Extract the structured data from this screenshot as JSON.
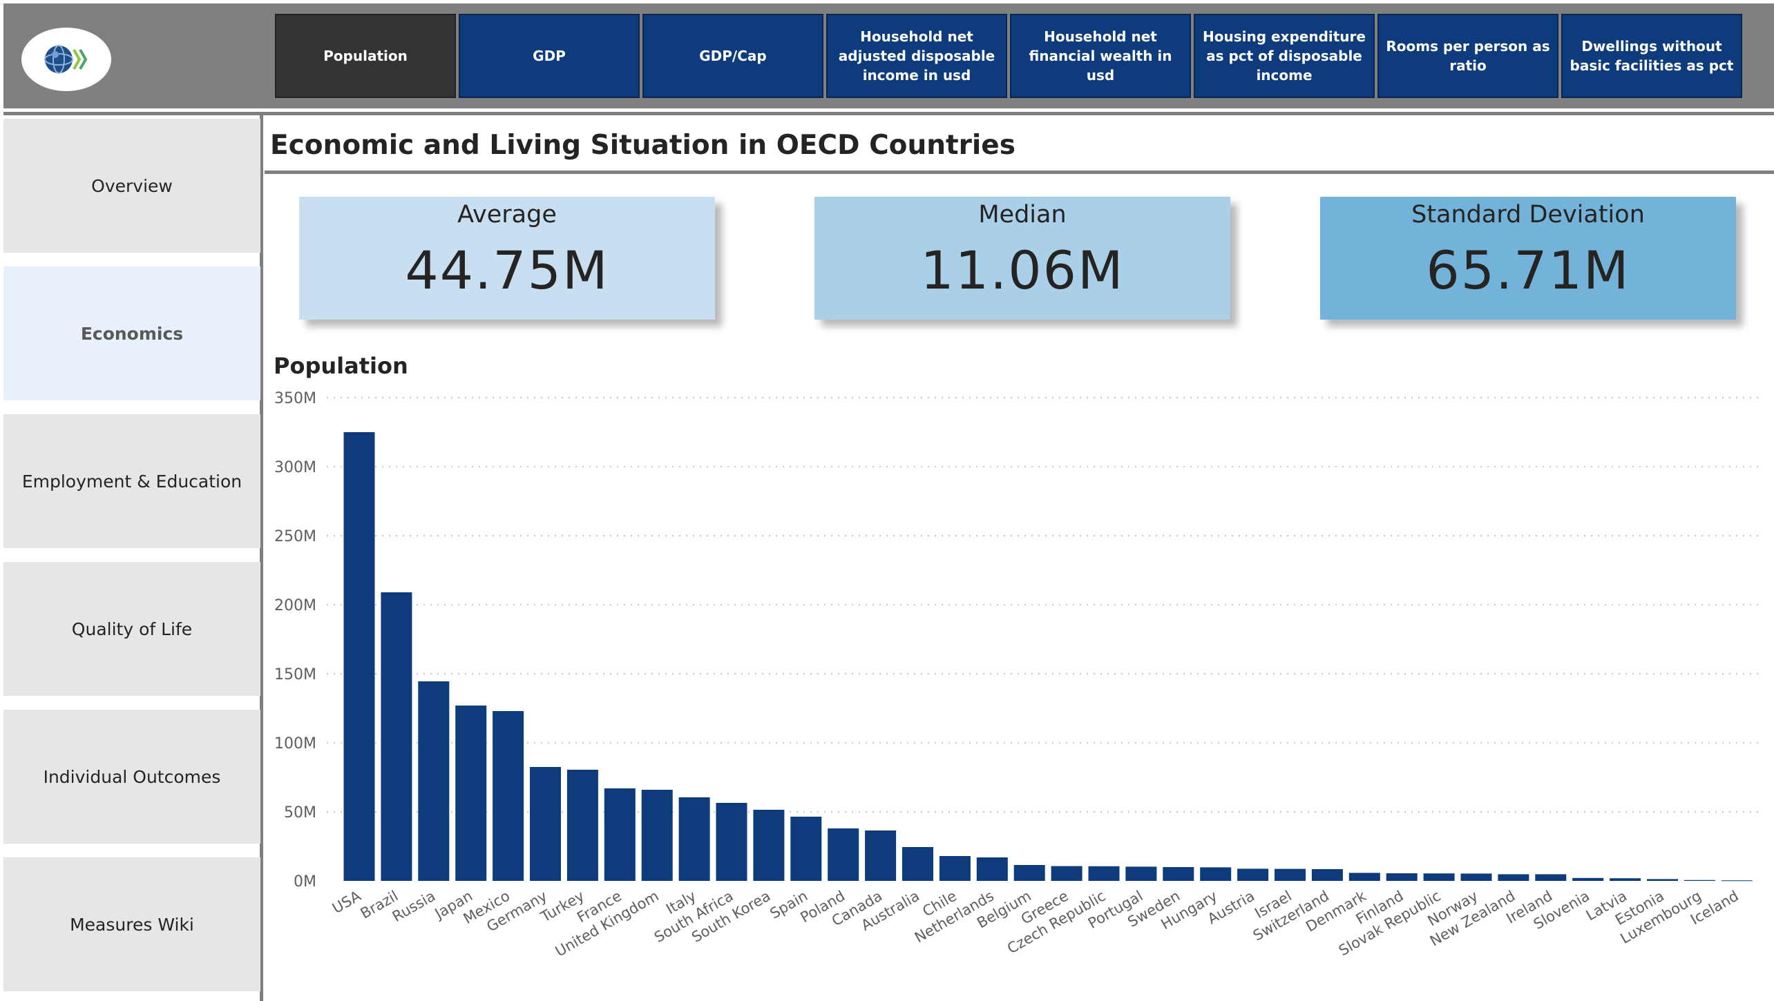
{
  "header": {
    "logo_icon": "oecd-globe-logo",
    "tabs": [
      {
        "label": "Population",
        "active": true
      },
      {
        "label": "GDP",
        "active": false
      },
      {
        "label": "GDP/Cap",
        "active": false
      },
      {
        "label": "Household net\nadjusted disposable\nincome in usd",
        "active": false
      },
      {
        "label": "Household net\nfinancial wealth in usd",
        "active": false
      },
      {
        "label": "Housing expenditure\nas pct of disposable\nincome",
        "active": false
      },
      {
        "label": "Rooms per person as\nratio",
        "active": false
      },
      {
        "label": "Dwellings without\nbasic facilities as pct",
        "active": false
      }
    ]
  },
  "sidebar": {
    "items": [
      {
        "label": "Overview",
        "active": false
      },
      {
        "label": "Economics",
        "active": true
      },
      {
        "label": "Employment & Education",
        "active": false
      },
      {
        "label": "Quality of Life",
        "active": false
      },
      {
        "label": "Individual Outcomes",
        "active": false
      },
      {
        "label": "Measures Wiki",
        "active": false
      }
    ]
  },
  "page": {
    "title": "Economic and Living Situation in OECD Countries"
  },
  "kpis": [
    {
      "label": "Average",
      "value": "44.75M",
      "color": "#c7dff0"
    },
    {
      "label": "Median",
      "value": "11.06M",
      "color": "#a9d0e8"
    },
    {
      "label": "Standard Deviation",
      "value": "65.71M",
      "color": "#74b3d9"
    }
  ],
  "colors": {
    "tab_bg": "#0d3b7b",
    "tab_active_bg": "#333333",
    "bar": "#0d3b7b",
    "sidebar_bg": "#e6e6e6",
    "sidebar_active_bg": "#e8f1fb"
  },
  "chart_data": {
    "type": "bar",
    "title": "Population",
    "xlabel": "",
    "ylabel": "",
    "ylim": [
      0,
      350
    ],
    "yticks": [
      0,
      50,
      100,
      150,
      200,
      250,
      300,
      350
    ],
    "ytick_labels": [
      "0M",
      "50M",
      "100M",
      "150M",
      "200M",
      "250M",
      "300M",
      "350M"
    ],
    "grid": true,
    "categories": [
      "USA",
      "Brazil",
      "Russia",
      "Japan",
      "Mexico",
      "Germany",
      "Turkey",
      "France",
      "United Kingdom",
      "Italy",
      "South Africa",
      "South Korea",
      "Spain",
      "Poland",
      "Canada",
      "Australia",
      "Chile",
      "Netherlands",
      "Belgium",
      "Greece",
      "Czech Republic",
      "Portugal",
      "Sweden",
      "Hungary",
      "Austria",
      "Israel",
      "Switzerland",
      "Denmark",
      "Finland",
      "Slovak Republic",
      "Norway",
      "New Zealand",
      "Ireland",
      "Slovenia",
      "Latvia",
      "Estonia",
      "Luxembourg",
      "Iceland"
    ],
    "values": [
      325,
      209,
      144.5,
      127,
      123,
      82.5,
      80.5,
      67,
      66,
      60.5,
      56.5,
      51.5,
      46.5,
      38,
      36.5,
      24.5,
      18,
      17,
      11.5,
      10.7,
      10.6,
      10.3,
      10,
      9.8,
      8.8,
      8.7,
      8.5,
      5.8,
      5.5,
      5.4,
      5.3,
      4.8,
      4.8,
      2.1,
      1.9,
      1.3,
      0.6,
      0.35
    ]
  }
}
